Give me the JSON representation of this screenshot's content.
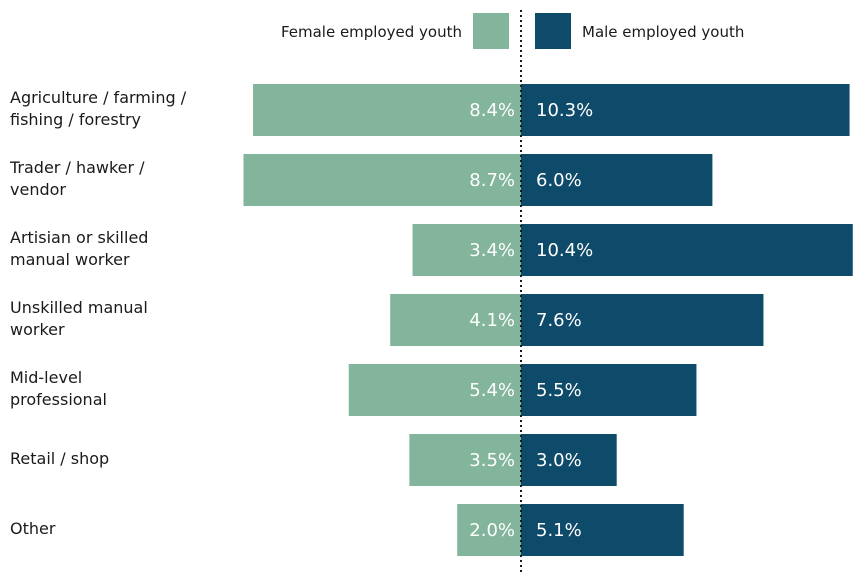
{
  "chart_data": {
    "type": "bar",
    "orientation": "horizontal-diverging",
    "categories": [
      "Agriculture / farming / fishing / forestry",
      "Trader / hawker / vendor",
      "Artisian or skilled manual worker",
      "Unskilled manual worker",
      "Mid-level professional",
      "Retail / shop",
      "Other"
    ],
    "category_lines": [
      [
        "Agriculture / farming /",
        "fishing / forestry"
      ],
      [
        "Trader / hawker /",
        "vendor"
      ],
      [
        "Artisian or skilled",
        "manual worker"
      ],
      [
        "Unskilled manual",
        "worker"
      ],
      [
        "Mid-level",
        "professional"
      ],
      [
        "Retail / shop"
      ],
      [
        "Other"
      ]
    ],
    "series": [
      {
        "name": "Female employed youth",
        "side": "left",
        "color": "#83b59c",
        "values": [
          8.4,
          8.7,
          3.4,
          4.1,
          5.4,
          3.5,
          2.0
        ],
        "labels": [
          "8.4%",
          "8.7%",
          "3.4%",
          "4.1%",
          "5.4%",
          "3.5%",
          "2.0%"
        ]
      },
      {
        "name": "Male employed youth",
        "side": "right",
        "color": "#0e4a69",
        "values": [
          10.3,
          6.0,
          10.4,
          7.6,
          5.5,
          3.0,
          5.1
        ],
        "labels": [
          "10.3%",
          "6.0%",
          "10.4%",
          "7.6%",
          "5.5%",
          "3.0%",
          "5.1%"
        ]
      }
    ],
    "title": "",
    "xlabel": "",
    "ylabel": "",
    "legend_position": "top-center",
    "center_line": "dotted",
    "grid": false
  }
}
